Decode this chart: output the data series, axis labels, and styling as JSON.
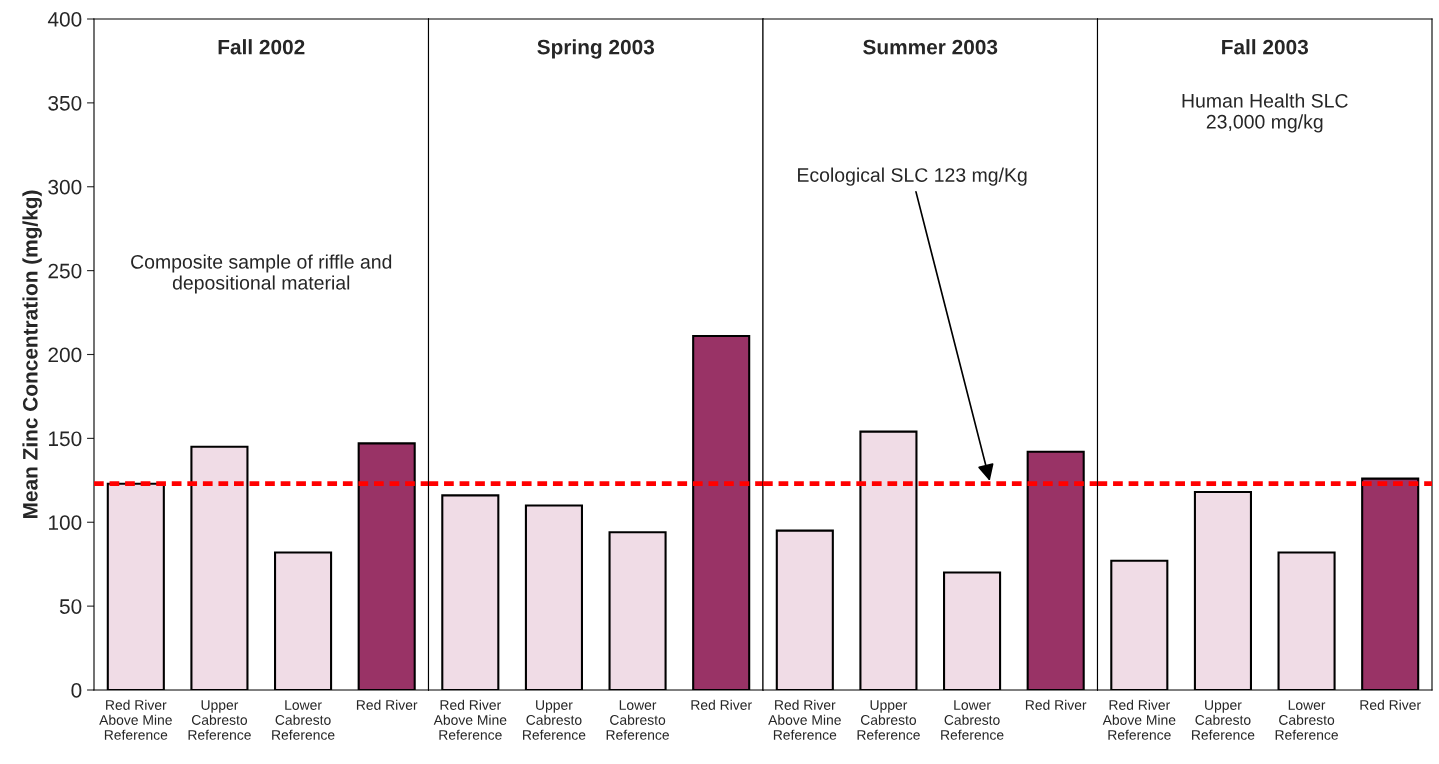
{
  "chart_data": [
    {
      "type": "bar",
      "title": "Fall 2002",
      "ylabel": "Mean Zinc Concentration (mg/kg)",
      "categories": [
        "Red River\nAbove Mine\nReference",
        "Upper\nCabresto\nReference",
        "Lower\nCabresto\nReference",
        "Red River"
      ],
      "values": [
        123,
        145,
        82,
        147
      ],
      "colors": [
        "#f0dce6",
        "#f0dce6",
        "#f0dce6",
        "#993366"
      ],
      "ylim": [
        0,
        400
      ],
      "yticks": [
        0,
        50,
        100,
        150,
        200,
        250,
        300,
        350,
        400
      ],
      "grid": false,
      "ref_lines": [
        {
          "axis": "y",
          "value": 123,
          "color": "#ff0000",
          "line_style": "dashed"
        }
      ],
      "annotations": [
        "Composite sample of riffle and\ndepositional material"
      ]
    },
    {
      "type": "bar",
      "title": "Spring 2003",
      "categories": [
        "Red River\nAbove Mine\nReference",
        "Upper\nCabresto\nReference",
        "Lower\nCabresto\nReference",
        "Red River"
      ],
      "values": [
        116,
        110,
        94,
        211
      ],
      "colors": [
        "#f0dce6",
        "#f0dce6",
        "#f0dce6",
        "#993366"
      ],
      "ylim": [
        0,
        400
      ],
      "tick_labels": "x",
      "grid": false,
      "ref_lines": [
        {
          "axis": "y",
          "value": 123,
          "color": "#ff0000",
          "line_style": "dashed"
        }
      ]
    },
    {
      "type": "bar",
      "title": "Summer 2003",
      "categories": [
        "Red River\nAbove Mine\nReference",
        "Upper\nCabresto\nReference",
        "Lower\nCabresto\nReference",
        "Red River"
      ],
      "values": [
        95,
        154,
        70,
        142
      ],
      "colors": [
        "#f0dce6",
        "#f0dce6",
        "#f0dce6",
        "#993366"
      ],
      "ylim": [
        0,
        400
      ],
      "tick_labels": "x",
      "grid": false,
      "ref_lines": [
        {
          "axis": "y",
          "value": 123,
          "color": "#ff0000",
          "line_style": "dashed",
          "label": "Ecological SLC 123 mg/Kg"
        }
      ]
    },
    {
      "type": "bar",
      "title": "Fall 2003",
      "categories": [
        "Red River\nAbove Mine\nReference",
        "Upper\nCabresto\nReference",
        "Lower\nCabresto\nReference",
        "Red River"
      ],
      "values": [
        77,
        118,
        82,
        126
      ],
      "colors": [
        "#f0dce6",
        "#f0dce6",
        "#f0dce6",
        "#993366"
      ],
      "ylim": [
        0,
        400
      ],
      "tick_labels": "x",
      "grid": false,
      "ref_lines": [
        {
          "axis": "y",
          "value": 123,
          "color": "#ff0000",
          "line_style": "dashed"
        }
      ],
      "annotations": [
        "Human Health SLC\n23,000 mg/kg"
      ]
    }
  ]
}
